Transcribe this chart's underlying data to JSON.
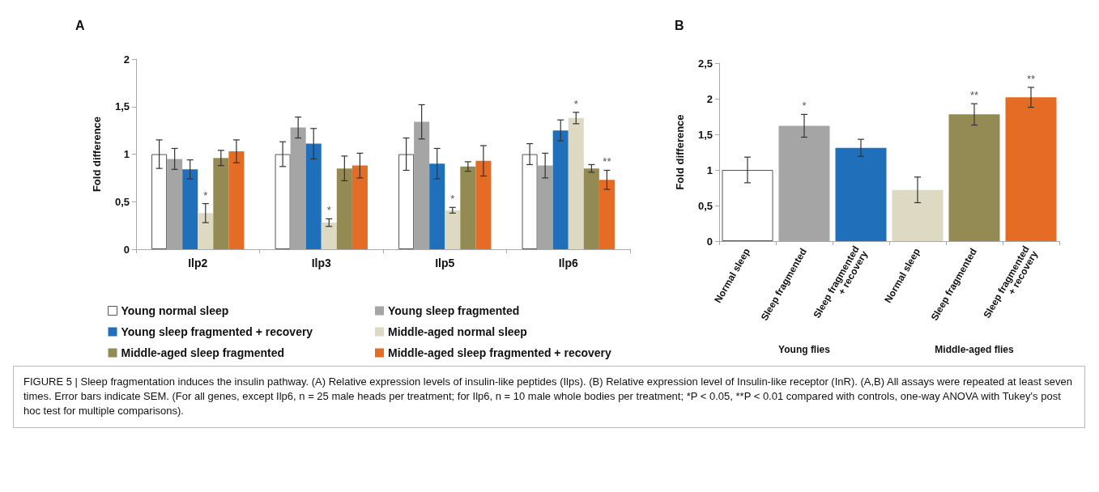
{
  "chart_data": [
    {
      "type": "bar",
      "title": "A",
      "ylabel": "Fold difference",
      "categories": [
        "Ilp2",
        "Ilp3",
        "Ilp5",
        "Ilp6"
      ],
      "series": [
        {
          "name": "Young normal sleep",
          "color": "#ffffff",
          "values": [
            1.0,
            1.0,
            1.0,
            1.0
          ],
          "errors": [
            0.15,
            0.13,
            0.17,
            0.11
          ]
        },
        {
          "name": "Young sleep fragmented",
          "color": "#a5a5a5",
          "values": [
            0.95,
            1.28,
            1.34,
            0.88
          ],
          "errors": [
            0.11,
            0.11,
            0.18,
            0.13
          ]
        },
        {
          "name": "Young sleep fragmented + recovery",
          "color": "#1f6fba",
          "values": [
            0.84,
            1.11,
            0.9,
            1.25
          ],
          "errors": [
            0.1,
            0.16,
            0.16,
            0.11
          ]
        },
        {
          "name": "Middle-aged normal sleep",
          "color": "#ddd9c3",
          "values": [
            0.38,
            0.28,
            0.41,
            1.38
          ],
          "errors": [
            0.1,
            0.04,
            0.03,
            0.06
          ],
          "value_labels": [
            "*",
            "*",
            "*",
            "*"
          ]
        },
        {
          "name": "Middle-aged sleep fragmented",
          "color": "#948a54",
          "values": [
            0.96,
            0.85,
            0.87,
            0.85
          ],
          "errors": [
            0.08,
            0.13,
            0.05,
            0.04
          ]
        },
        {
          "name": "Middle-aged sleep fragmented + recovery",
          "color": "#e46c25",
          "values": [
            1.03,
            0.88,
            0.93,
            0.73
          ],
          "errors": [
            0.12,
            0.13,
            0.16,
            0.1
          ],
          "value_labels": [
            null,
            null,
            null,
            "**"
          ]
        }
      ],
      "ylim": [
        0,
        2
      ],
      "yticks": [
        0,
        {
          "value": 0.5,
          "label": "0,5"
        },
        1,
        {
          "value": 1.5,
          "label": "1,5"
        },
        2
      ],
      "grid": false,
      "legend": "bottom",
      "annotations": [
        "FIGURE 5 | Sleep fragmentation induces the insulin pathway. (A) Relative expression levels of insulin-like peptides (Ilps). (B) Relative expression level of Insulin-like receptor (InR). (A,B) All assays were repeated at least seven times. Error bars indicate SEM. (For all genes, except Ilp6, n = 25 male heads per treatment; for Ilp6, n = 10 male whole bodies per treatment; *P < 0.05, **P < 0.01 compared with controls, one-way ANOVA with Tukey's post hoc test for multiple comparisons)."
      ]
    },
    {
      "type": "bar",
      "title": "B",
      "ylabel": "Fold difference",
      "categories": [
        "Normal sleep",
        "Sleep fragmented",
        "Sleep fragmented\n+ recovery",
        "Normal sleep",
        "Sleep fragmented",
        "Sleep fragmented\n+ recovery"
      ],
      "values": [
        1.0,
        1.62,
        1.31,
        0.72,
        1.78,
        2.02
      ],
      "errors": [
        0.18,
        0.16,
        0.12,
        0.18,
        0.15,
        0.14
      ],
      "colors": [
        "#ffffff",
        "#a5a5a5",
        "#1f6fba",
        "#ddd9c3",
        "#948a54",
        "#e46c25"
      ],
      "value_labels": [
        null,
        "*",
        null,
        null,
        "**",
        "**"
      ],
      "ylim": [
        0,
        2.5
      ],
      "yticks": [
        0,
        {
          "value": 0.5,
          "label": "0,5"
        },
        1,
        {
          "value": 1.5,
          "label": "1,5"
        },
        2,
        {
          "value": 2.5,
          "label": "2,5"
        }
      ],
      "grid": false,
      "legend": false,
      "annotations": [
        "Young flies",
        "Middle-aged flies"
      ]
    }
  ]
}
